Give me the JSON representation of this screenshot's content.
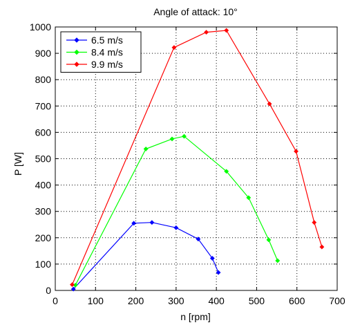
{
  "chart_data": {
    "type": "line",
    "title": "Angle of attack: 10°",
    "xlabel": "n [rpm]",
    "ylabel": "P [W]",
    "xlim": [
      0,
      700
    ],
    "ylim": [
      0,
      1000
    ],
    "xticks": [
      0,
      100,
      200,
      300,
      400,
      500,
      600,
      700
    ],
    "yticks": [
      0,
      100,
      200,
      300,
      400,
      500,
      600,
      700,
      800,
      900,
      1000
    ],
    "grid": true,
    "grid_style": "dotted",
    "legend_position": "top-left",
    "marker": "diamond",
    "series": [
      {
        "name": "6.5 m/s",
        "color": "#0000ff",
        "points": [
          [
            45,
            5
          ],
          [
            195,
            255
          ],
          [
            240,
            258
          ],
          [
            300,
            238
          ],
          [
            355,
            195
          ],
          [
            390,
            122
          ],
          [
            405,
            68
          ]
        ]
      },
      {
        "name": "8.4 m/s",
        "color": "#00ff00",
        "points": [
          [
            50,
            20
          ],
          [
            225,
            537
          ],
          [
            290,
            575
          ],
          [
            320,
            585
          ],
          [
            425,
            452
          ],
          [
            480,
            352
          ],
          [
            530,
            192
          ],
          [
            552,
            113
          ]
        ]
      },
      {
        "name": "9.9 m/s",
        "color": "#ff0000",
        "points": [
          [
            42,
            22
          ],
          [
            295,
            922
          ],
          [
            375,
            980
          ],
          [
            425,
            987
          ],
          [
            532,
            708
          ],
          [
            598,
            528
          ],
          [
            643,
            258
          ],
          [
            662,
            165
          ]
        ]
      }
    ]
  }
}
